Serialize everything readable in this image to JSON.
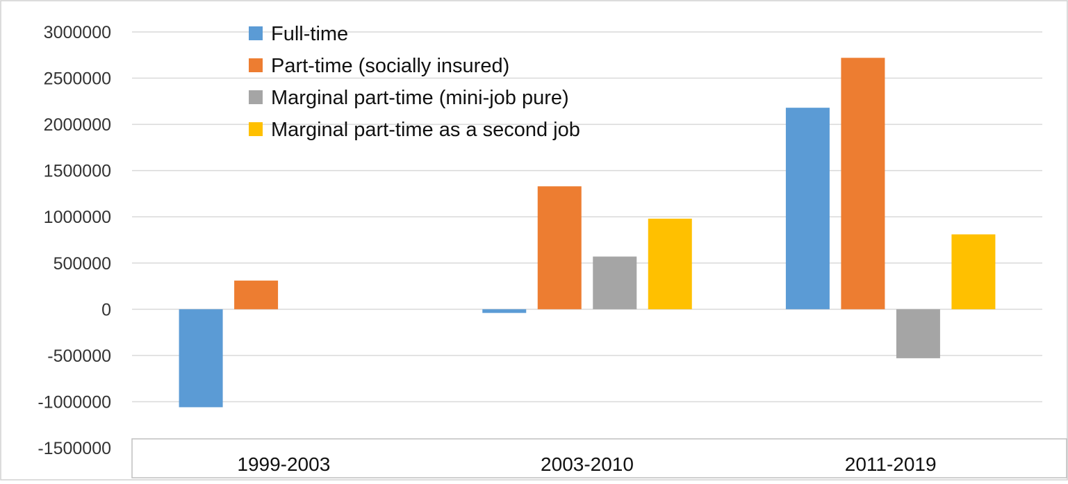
{
  "chart_data": {
    "type": "bar",
    "title": "",
    "xlabel": "",
    "ylabel": "",
    "ylim": [
      -1500000,
      3000000
    ],
    "yticks": [
      3000000,
      2500000,
      2000000,
      1500000,
      1000000,
      500000,
      0,
      -500000,
      -1000000,
      -1500000
    ],
    "ytick_labels": [
      "3000000",
      "2500000",
      "2000000",
      "1500000",
      "1000000",
      "500000",
      "0",
      "-500000",
      "-1000000",
      "-1500000"
    ],
    "grid": true,
    "legend_position": "top-left",
    "categories": [
      "1999-2003",
      "2003-2010",
      "2011-2019"
    ],
    "series": [
      {
        "name": "Full-time",
        "color": "#5b9bd5",
        "values": [
          -1060000,
          -40000,
          2180000
        ]
      },
      {
        "name": "Part-time (socially insured)",
        "color": "#ed7d31",
        "values": [
          310000,
          1330000,
          2720000
        ]
      },
      {
        "name": "Marginal part-time (mini-job pure)",
        "color": "#a5a5a5",
        "values": [
          null,
          570000,
          -530000
        ]
      },
      {
        "name": "Marginal part-time as a second job",
        "color": "#ffc000",
        "values": [
          null,
          980000,
          810000
        ]
      }
    ]
  }
}
